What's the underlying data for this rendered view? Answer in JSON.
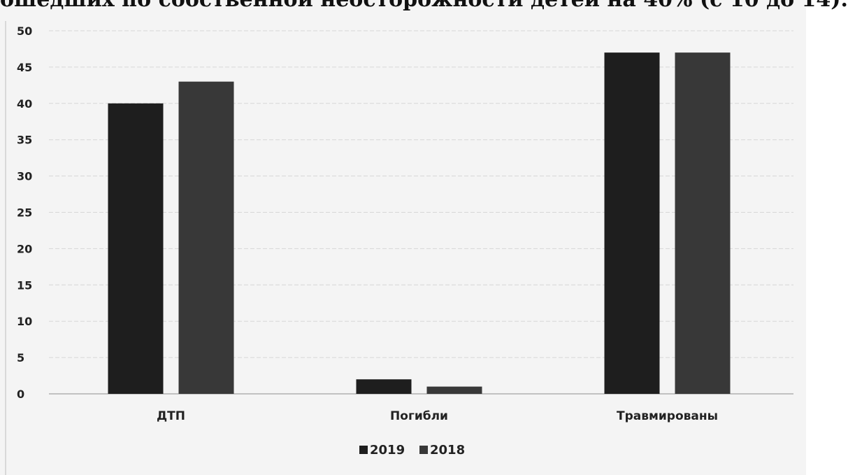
{
  "header_text": "ошедших по собственной неосторожности детей на 40% (с 10 до 14).",
  "chart_data": {
    "type": "bar",
    "title": "",
    "xlabel": "",
    "ylabel": "",
    "categories": [
      "ДТП",
      "Погибли",
      "Травмированы"
    ],
    "series": [
      {
        "name": "2019",
        "values": [
          40,
          2,
          47
        ],
        "color": "#1e1e1e"
      },
      {
        "name": "2018",
        "values": [
          43,
          1,
          47
        ],
        "color": "#383838"
      }
    ],
    "ylim": [
      0,
      50
    ],
    "yticks": [
      "0",
      "5",
      "10",
      "15",
      "20",
      "25",
      "30",
      "35",
      "40",
      "45",
      "50"
    ],
    "grid": true,
    "legend_position": "bottom"
  }
}
